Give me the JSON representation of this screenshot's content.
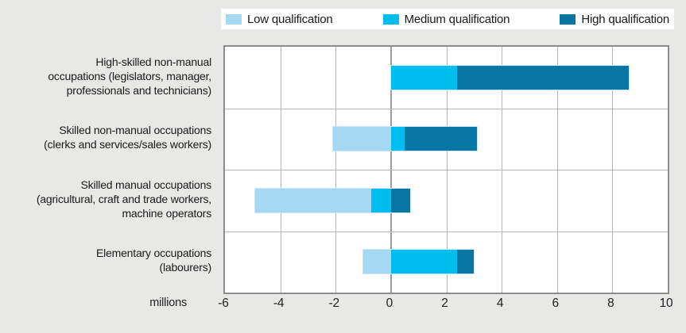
{
  "page": {
    "background": "#e8e9e7"
  },
  "legend": {
    "items": [
      {
        "label": "Low qualification",
        "color": "#a5d9f2"
      },
      {
        "label": "Medium qualification",
        "color": "#00bdf0"
      },
      {
        "label": "High qualification",
        "color": "#0776a2"
      }
    ]
  },
  "chart_data": {
    "type": "bar",
    "orientation": "horizontal",
    "stacked": true,
    "title": "",
    "xlabel": "millions",
    "ylabel": "",
    "xlim": [
      -6,
      10
    ],
    "x_ticks": [
      "-6",
      "-4",
      "-2",
      "0",
      "2",
      "4",
      "6",
      "8",
      "10"
    ],
    "x_tick_values": [
      -6,
      -4,
      -2,
      0,
      2,
      4,
      6,
      8,
      10
    ],
    "grid": true,
    "legend_position": "top",
    "unit_label": "millions",
    "categories": [
      {
        "label": "High-skilled non-manual occupations (legislators, manager, professionals and technicians)",
        "lines": [
          "High-skilled non-manual",
          "occupations (legislators, manager,",
          "professionals and technicians)"
        ]
      },
      {
        "label": "Skilled non-manual occupations (clerks and services/sales workers)",
        "lines": [
          "Skilled non-manual occupations",
          "(clerks and services/sales workers)"
        ]
      },
      {
        "label": "Skilled manual occupations (agricultural, craft and trade workers, machine operators",
        "lines": [
          "Skilled manual occupations",
          "(agricultural, craft and trade workers,",
          "machine operators"
        ]
      },
      {
        "label": "Elementary occupations (labourers)",
        "lines": [
          "Elementary occupations",
          "(labourers)"
        ]
      }
    ],
    "series": [
      {
        "name": "Low qualification",
        "color": "#a5d9f2",
        "values": [
          0,
          -2.1,
          -4.2,
          -1.0
        ]
      },
      {
        "name": "Medium qualification",
        "color": "#00bdf0",
        "values": [
          2.4,
          0.5,
          -0.7,
          2.4
        ]
      },
      {
        "name": "High qualification",
        "color": "#0776a2",
        "values": [
          6.2,
          2.6,
          0.7,
          0.6
        ]
      }
    ],
    "colors": {
      "plot_background": "#ffffff",
      "plot_border": "#8d8d8d",
      "gridline": "#b7b7b7",
      "zero_line": "#9c9c9c",
      "bar_outline": "#c9e7f6",
      "text": "#1a1a1a"
    }
  }
}
